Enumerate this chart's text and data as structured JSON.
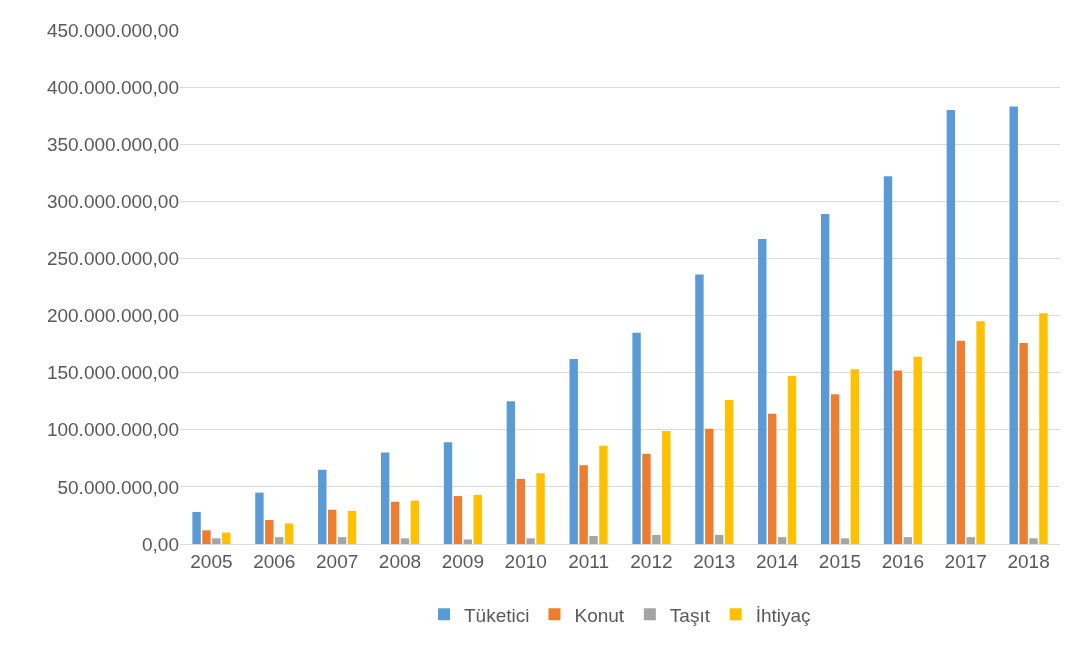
{
  "chart_data": {
    "type": "bar",
    "categories": [
      "2005",
      "2006",
      "2007",
      "2008",
      "2009",
      "2010",
      "2011",
      "2012",
      "2013",
      "2014",
      "2015",
      "2016",
      "2017",
      "2018"
    ],
    "series": [
      {
        "name": "Tüketici",
        "color": "#5b9bd5",
        "values": [
          28000000,
          45000000,
          65000000,
          80000000,
          89000000,
          125000000,
          162000000,
          185000000,
          236000000,
          267000000,
          289000000,
          322000000,
          380000000,
          383000000
        ]
      },
      {
        "name": "Konut",
        "color": "#ed7d31",
        "values": [
          12000000,
          21000000,
          30000000,
          37000000,
          42000000,
          57000000,
          69000000,
          79000000,
          101000000,
          114000000,
          131000000,
          152000000,
          178000000,
          176000000
        ]
      },
      {
        "name": "Taşıt",
        "color": "#a5a5a5",
        "values": [
          5000000,
          6000000,
          6000000,
          5000000,
          4000000,
          5000000,
          7000000,
          8000000,
          8000000,
          6000000,
          5000000,
          6000000,
          6000000,
          5000000
        ]
      },
      {
        "name": "İhtiyaç",
        "color": "#ffc000",
        "values": [
          10000000,
          18000000,
          29000000,
          38000000,
          43000000,
          62000000,
          86000000,
          99000000,
          126000000,
          147000000,
          153000000,
          164000000,
          195000000,
          202000000
        ]
      }
    ],
    "ylim": [
      0,
      450000000
    ],
    "yticks": [
      {
        "value": 0,
        "label": "0,00"
      },
      {
        "value": 50000000,
        "label": "50.000.000,00"
      },
      {
        "value": 100000000,
        "label": "100.000.000,00"
      },
      {
        "value": 150000000,
        "label": "150.000.000,00"
      },
      {
        "value": 200000000,
        "label": "200.000.000,00"
      },
      {
        "value": 250000000,
        "label": "250.000.000,00"
      },
      {
        "value": 300000000,
        "label": "300.000.000,00"
      },
      {
        "value": 350000000,
        "label": "350.000.000,00"
      },
      {
        "value": 400000000,
        "label": "400.000.000,00"
      },
      {
        "value": 450000000,
        "label": "450.000.000,00"
      }
    ],
    "grid": "y",
    "legend": "bottom"
  }
}
